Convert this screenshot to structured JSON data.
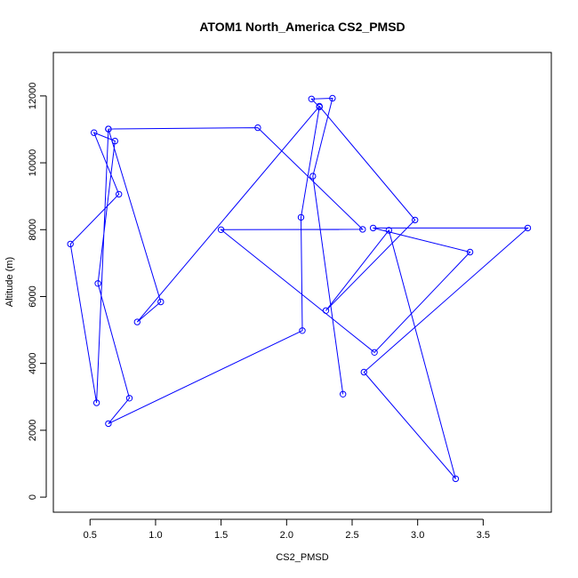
{
  "chart_data": {
    "type": "line",
    "title": "ATOM1 North_America CS2_PMSD",
    "xlabel": "CS2_PMSD",
    "ylabel": "Altitude (m)",
    "xlim": [
      0.22,
      4.02
    ],
    "ylim": [
      -450,
      13300
    ],
    "xticks": [
      0.5,
      1.0,
      1.5,
      2.0,
      2.5,
      3.0,
      3.5
    ],
    "xtick_labels": [
      "0.5",
      "1.0",
      "1.5",
      "2.0",
      "2.5",
      "3.0",
      "3.5"
    ],
    "yticks": [
      0,
      2000,
      4000,
      6000,
      8000,
      10000,
      12000
    ],
    "ytick_labels": [
      "0",
      "2000",
      "4000",
      "6000",
      "8000",
      "10000",
      "12000"
    ],
    "grid": false,
    "line_color": "#0000ff",
    "marker": "open-circle",
    "series": [
      {
        "x": [
          2.43,
          2.2,
          2.35,
          2.19,
          2.25,
          2.11,
          2.12,
          0.64,
          0.8,
          0.56,
          0.69,
          0.53,
          0.72,
          0.35,
          0.55,
          0.64,
          1.04,
          0.86,
          2.25,
          2.98,
          2.3,
          2.78,
          3.29,
          2.59,
          3.84,
          2.66,
          3.4,
          2.67,
          1.5,
          2.58,
          1.78,
          0.64
        ],
        "y": [
          3080,
          9600,
          11930,
          11910,
          11670,
          8370,
          4980,
          2200,
          2960,
          6390,
          10650,
          10900,
          9060,
          7570,
          2820,
          11010,
          5840,
          5240,
          11690,
          8290,
          5580,
          7980,
          550,
          3740,
          8050,
          8050,
          7330,
          4330,
          8000,
          8010,
          11050,
          11010
        ]
      }
    ]
  }
}
